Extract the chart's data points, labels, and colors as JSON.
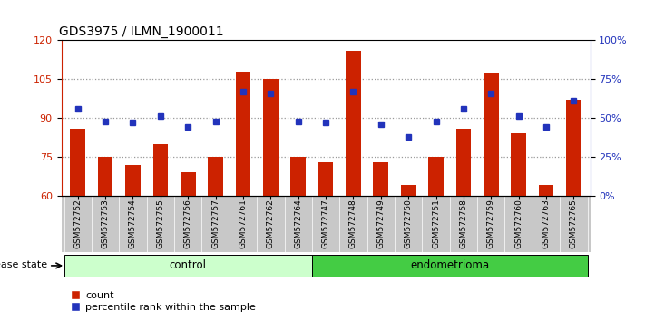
{
  "title": "GDS3975 / ILMN_1900011",
  "samples": [
    "GSM572752",
    "GSM572753",
    "GSM572754",
    "GSM572755",
    "GSM572756",
    "GSM572757",
    "GSM572761",
    "GSM572762",
    "GSM572764",
    "GSM572747",
    "GSM572748",
    "GSM572749",
    "GSM572750",
    "GSM572751",
    "GSM572758",
    "GSM572759",
    "GSM572760",
    "GSM572763",
    "GSM572765"
  ],
  "bar_values": [
    86,
    75,
    72,
    80,
    69,
    75,
    108,
    105,
    75,
    73,
    116,
    73,
    64,
    75,
    86,
    107,
    84,
    64,
    97
  ],
  "blue_values": [
    56,
    48,
    47,
    51,
    44,
    48,
    67,
    66,
    48,
    47,
    67,
    46,
    38,
    48,
    56,
    66,
    51,
    44,
    61
  ],
  "control_count": 9,
  "endometrioma_count": 10,
  "ylim_left": [
    60,
    120
  ],
  "ylim_right": [
    0,
    100
  ],
  "yticks_left": [
    60,
    75,
    90,
    105,
    120
  ],
  "yticks_right": [
    0,
    25,
    50,
    75,
    100
  ],
  "ytick_labels_right": [
    "0%",
    "25%",
    "50%",
    "75%",
    "100%"
  ],
  "bar_color": "#cc2200",
  "blue_color": "#2233bb",
  "control_bg_light": "#ccffcc",
  "control_bg_dark": "#44cc44",
  "tick_area_bg": "#c8c8c8",
  "grid_color": "#888888",
  "disease_label": "disease state",
  "legend_count": "count",
  "legend_percentile": "percentile rank within the sample"
}
